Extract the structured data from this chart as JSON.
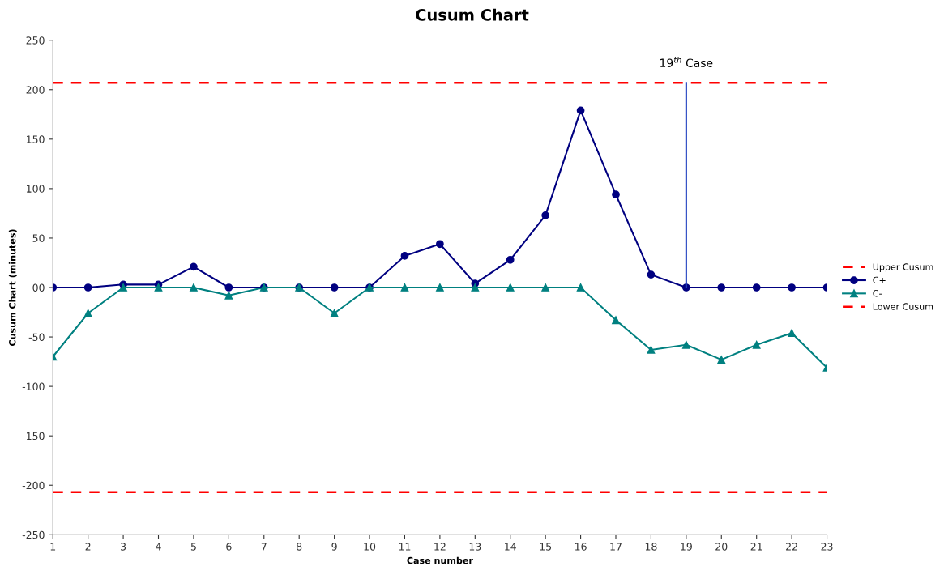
{
  "chart_data": {
    "type": "line",
    "title": "Cusum Chart",
    "xlabel": "Case number",
    "ylabel": "Cusum Chart (minutes)",
    "x": [
      1,
      2,
      3,
      4,
      5,
      6,
      7,
      8,
      9,
      10,
      11,
      12,
      13,
      14,
      15,
      16,
      17,
      18,
      19,
      20,
      21,
      22,
      23
    ],
    "series": [
      {
        "name": "C+",
        "color": "#000080",
        "marker": "circle",
        "values": [
          0,
          0,
          3,
          3,
          21,
          0,
          0,
          0,
          0,
          0,
          32,
          44,
          4,
          28,
          73,
          179,
          94,
          13,
          0,
          0,
          0,
          0,
          0
        ]
      },
      {
        "name": "C-",
        "color": "#008080",
        "marker": "triangle",
        "values": [
          -70,
          -26,
          0,
          0,
          0,
          -8,
          0,
          0,
          -26,
          0,
          0,
          0,
          0,
          0,
          0,
          0,
          -33,
          -63,
          -58,
          -73,
          -58,
          -46,
          -81
        ]
      },
      {
        "type": "line",
        "color": "#1f3fbf",
        "marker": "none",
        "x": [
          19,
          19
        ],
        "values": [
          0,
          207
        ]
      }
    ],
    "ref_lines": [
      {
        "axis": "y",
        "value": 207,
        "label": "Upper Cusum",
        "color": "#ff0000",
        "line_style": "dashed"
      },
      {
        "axis": "y",
        "value": -207,
        "label": "Lower Cusum",
        "color": "#ff0000",
        "line_style": "dashed"
      }
    ],
    "annotations": [
      {
        "text": "19$^{th}$ Case",
        "x": 19,
        "y": 207
      }
    ],
    "xlim": [
      1,
      23
    ],
    "xticks": [
      1,
      2,
      3,
      4,
      5,
      6,
      7,
      8,
      9,
      10,
      11,
      12,
      13,
      14,
      15,
      16,
      17,
      18,
      19,
      20,
      21,
      22,
      23
    ],
    "ylim": [
      -250,
      250
    ],
    "yticks": [
      {
        "value": -250,
        "label": "-250"
      },
      {
        "value": -200,
        "label": "-200"
      },
      {
        "value": -150,
        "label": "-150"
      },
      {
        "value": -100,
        "label": "-100"
      },
      {
        "value": -50,
        "label": "-50"
      },
      {
        "value": 0,
        "label": "00"
      },
      50,
      100,
      150,
      200,
      250
    ],
    "grid": false,
    "legend": "right"
  }
}
